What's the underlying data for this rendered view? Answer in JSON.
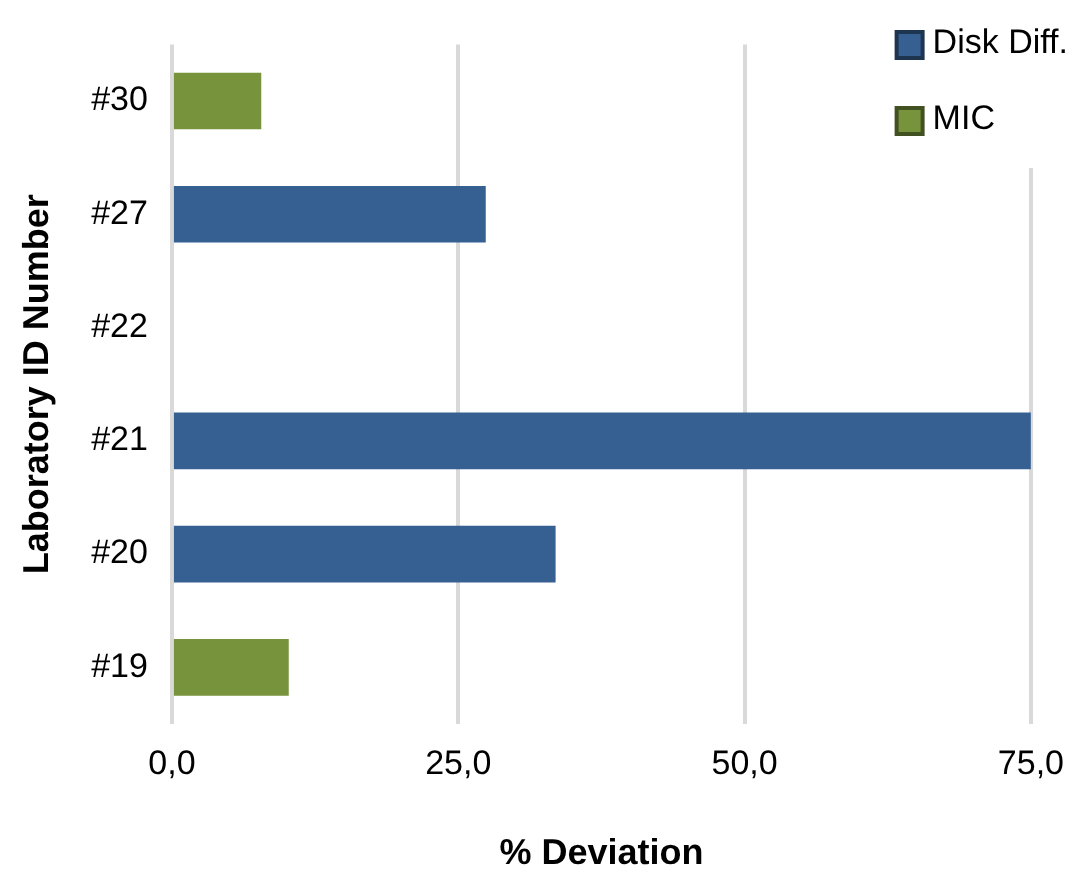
{
  "chart_data": {
    "type": "bar",
    "orientation": "horizontal",
    "xlabel": "% Deviation",
    "ylabel": "Laboratory ID Number",
    "categories": [
      "#30",
      "#27",
      "#22",
      "#21",
      "#20",
      "#19"
    ],
    "series": [
      {
        "name": "Disk Diff.",
        "color": "#376092",
        "values": [
          null,
          27.4,
          null,
          75,
          33.5,
          null
        ]
      },
      {
        "name": "MIC",
        "color": "#77933c",
        "values": [
          7.8,
          null,
          null,
          null,
          null,
          10.2
        ]
      }
    ],
    "xlim": [
      0,
      75
    ],
    "xticks": [
      {
        "value": 0,
        "label": "0,0"
      },
      {
        "value": 25,
        "label": "25,0"
      },
      {
        "value": 50,
        "label": "50,0"
      },
      {
        "value": 75,
        "label": "75,0"
      }
    ],
    "grid": "x",
    "legend": "top right"
  }
}
